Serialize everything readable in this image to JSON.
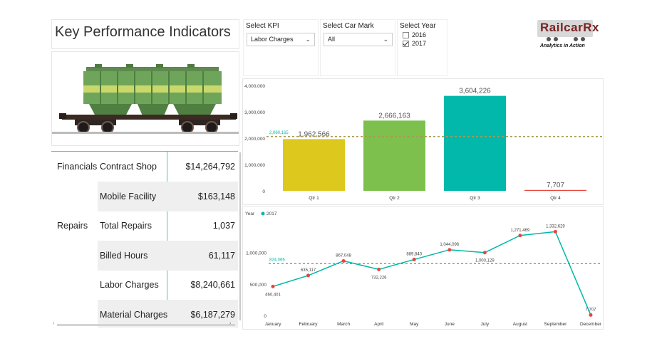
{
  "page_title": "Key Performance Indicators",
  "slicers": {
    "kpi": {
      "label": "Select KPI",
      "selected": "Labor Charges"
    },
    "car_mark": {
      "label": "Select Car Mark",
      "selected": "All"
    },
    "year": {
      "label": "Select Year",
      "options": [
        {
          "label": "2016",
          "checked": false
        },
        {
          "label": "2017",
          "checked": true
        }
      ]
    }
  },
  "logo": {
    "word": "RailcarRx",
    "tagline": "Analytics in Action"
  },
  "table": {
    "rows": [
      {
        "category": "Financials",
        "metric": "Contract Shop",
        "value": "$14,264,792",
        "shaded": false
      },
      {
        "category": "",
        "metric": "Mobile Facility",
        "value": "$163,148",
        "shaded": true
      },
      {
        "category": "Repairs",
        "metric": "Total Repairs",
        "value": "1,037",
        "shaded": false
      },
      {
        "category": "",
        "metric": "Billed Hours",
        "value": "61,117",
        "shaded": true
      },
      {
        "category": "",
        "metric": "Labor Charges",
        "value": "$8,240,661",
        "shaded": false
      },
      {
        "category": "",
        "metric": "Material Charges",
        "value": "$6,187,279",
        "shaded": true
      }
    ]
  },
  "chart_data": [
    {
      "type": "bar",
      "categories": [
        "Qtr 1",
        "Qtr 2",
        "Qtr 3",
        "Qtr 4"
      ],
      "values": [
        1962566,
        2666163,
        3604226,
        7707
      ],
      "data_labels": [
        "1,962,566",
        "2,666,163",
        "3,604,226",
        "7,707"
      ],
      "colors": [
        "#DDC81E",
        "#7DC04E",
        "#01B8AA",
        "#E8453C"
      ],
      "yticks": [
        0,
        1000000,
        2000000,
        3000000,
        4000000
      ],
      "ytick_labels": [
        "0",
        "1,000,000",
        "2,000,000",
        "3,000,000",
        "4,000,000"
      ],
      "ylim": [
        0,
        4000000
      ],
      "average": 2060165,
      "average_label": "2,060,165",
      "average_color": "#A89A4E",
      "grid": false
    },
    {
      "type": "line",
      "legend_title": "Year",
      "series": [
        {
          "name": "2017",
          "color": "#01B8AA",
          "marker_color": "#E8453C",
          "values": [
            460401,
            635117,
            867048,
            732226,
            889840,
            1044096,
            1000129,
            1271469,
            1332629,
            7707
          ],
          "labels": [
            "460,401",
            "635,117",
            "867,048",
            "732,226",
            "889,840",
            "1,044,096",
            "1,000,129",
            "1,271,469",
            "1,332,629",
            "7,707"
          ]
        }
      ],
      "categories": [
        "January",
        "February",
        "March",
        "April",
        "May",
        "June",
        "July",
        "August",
        "September",
        "December"
      ],
      "yticks": [
        0,
        500000,
        1000000
      ],
      "ytick_labels": [
        "0",
        "500,000",
        "1,000,000"
      ],
      "ylim": [
        0,
        1450000
      ],
      "average": 824066,
      "average_label": "824,066",
      "average_color": "#A89A4E",
      "grid": false
    }
  ]
}
